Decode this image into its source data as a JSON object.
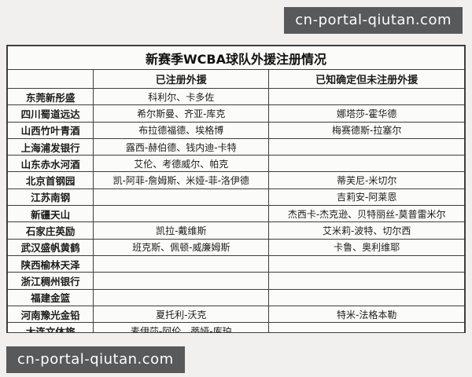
{
  "watermark": {
    "text": "cn-portal-qiutan.com",
    "bg_color": "#58595b",
    "text_color": "#ffffff"
  },
  "table": {
    "title": "新赛季WCBA球队外援注册情况",
    "columns": [
      "",
      "已注册外援",
      "已知确定但未注册外援"
    ],
    "rows": [
      {
        "team": "东莞新彤盛",
        "registered": "科利尔、卡多佐",
        "unregistered": ""
      },
      {
        "team": "四川蜀道远达",
        "registered": "希尔斯曼、齐亚-库克",
        "unregistered": "娜塔莎-霍华德"
      },
      {
        "team": "山西竹叶青酒",
        "registered": "布拉德福德、埃格博",
        "unregistered": "梅赛德斯-拉塞尔"
      },
      {
        "team": "上海浦发银行",
        "registered": "露西-赫伯德、钱内迪-卡特",
        "unregistered": ""
      },
      {
        "team": "山东赤水河酒",
        "registered": "艾伦、考德威尔、帕克",
        "unregistered": ""
      },
      {
        "team": "北京首钢园",
        "registered": "凯-阿菲-詹姆斯、米娅-菲-洛伊德",
        "unregistered": "蒂芙尼-米切尔"
      },
      {
        "team": "江苏南钢",
        "registered": "",
        "unregistered": "吉莉安-阿莱恩"
      },
      {
        "team": "新疆天山",
        "registered": "",
        "unregistered": "杰西卡-杰克逊、贝特丽丝-莫普雷米尔"
      },
      {
        "team": "石家庄英励",
        "registered": "凯拉-戴维斯",
        "unregistered": "艾米莉-波特、切尔西"
      },
      {
        "team": "武汉盛帆黄鹤",
        "registered": "班克斯、佩顿-威廉姆斯",
        "unregistered": "卡鲁、奥利维耶"
      },
      {
        "team": "陕西榆林天泽",
        "registered": "",
        "unregistered": ""
      },
      {
        "team": "浙江稠州银行",
        "registered": "",
        "unregistered": ""
      },
      {
        "team": "福建金篮",
        "registered": "",
        "unregistered": ""
      },
      {
        "team": "河南豫光金铅",
        "registered": "夏托利-沃克",
        "unregistered": "特米-法格本勒"
      },
      {
        "team": "大连文体旅",
        "registered": "麦伊莎-阿伦、蒂娅-库珀",
        "unregistered": ""
      }
    ]
  }
}
